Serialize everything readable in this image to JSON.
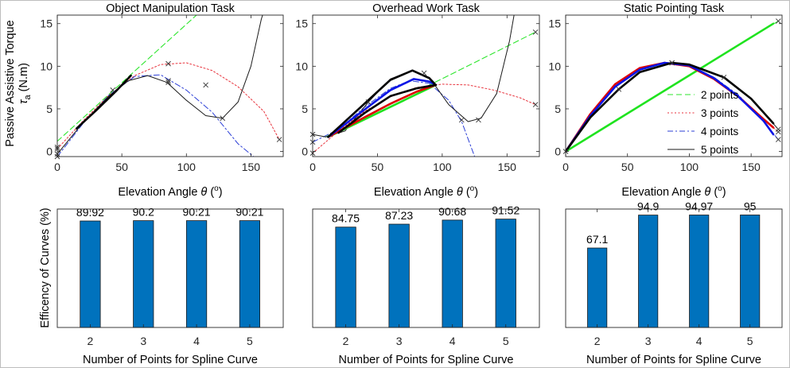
{
  "chart_data": [
    {
      "type": "line",
      "title": "Object Manipulation Task",
      "xlabel": "Elevation Angle θ (o)",
      "ylabel": "Passive Assistive Torque τa (N.m)",
      "xlim": [
        0,
        175
      ],
      "ylim": [
        -0.6,
        16
      ],
      "xticks": [
        "0",
        "50",
        "100",
        "150"
      ],
      "yticks": [
        "0",
        "5",
        "10",
        "15"
      ],
      "grid": false,
      "series": [
        {
          "name": "data",
          "points": [
            [
              15,
              2.7
            ],
            [
              30,
              4.8
            ],
            [
              45,
              7.0
            ],
            [
              57,
              8.9
            ]
          ]
        },
        {
          "name": "2 points",
          "points": [
            [
              0,
              1.2
            ],
            [
              110,
              16.3
            ]
          ],
          "markers": [
            [
              0,
              0.5
            ]
          ]
        },
        {
          "name": "3 points",
          "points": [
            [
              0,
              0.3
            ],
            [
              20,
              3.6
            ],
            [
              40,
              6.6
            ],
            [
              60,
              8.9
            ],
            [
              80,
              10.2
            ],
            [
              100,
              10.4
            ],
            [
              120,
              9.5
            ],
            [
              140,
              7.6
            ],
            [
              160,
              4.7
            ],
            [
              172,
              1.4
            ]
          ],
          "markers": [
            [
              0,
              0.3
            ],
            [
              86,
              10.3
            ],
            [
              172,
              1.4
            ]
          ]
        },
        {
          "name": "4 points",
          "points": [
            [
              0,
              -0.6
            ],
            [
              20,
              3.3
            ],
            [
              40,
              6.6
            ],
            [
              60,
              8.8
            ],
            [
              80,
              9.0
            ],
            [
              100,
              7.2
            ],
            [
              120,
              4.6
            ],
            [
              140,
              0.9
            ],
            [
              152,
              -0.6
            ]
          ],
          "markers": [
            [
              0,
              -0.6
            ],
            [
              86,
              8.3
            ],
            [
              115,
              7.8
            ]
          ]
        },
        {
          "name": "5 points",
          "points": [
            [
              0,
              -0.3
            ],
            [
              20,
              3.4
            ],
            [
              40,
              6.5
            ],
            [
              55,
              8.3
            ],
            [
              70,
              8.9
            ],
            [
              85,
              8.1
            ],
            [
              100,
              6.0
            ],
            [
              115,
              4.2
            ],
            [
              128,
              3.9
            ],
            [
              140,
              5.8
            ],
            [
              150,
              10.0
            ],
            [
              158,
              15.5
            ],
            [
              160,
              16.5
            ]
          ],
          "markers": [
            [
              0,
              -0.3
            ],
            [
              43,
              7.2
            ],
            [
              86,
              8.1
            ],
            [
              128,
              3.9
            ]
          ]
        }
      ]
    },
    {
      "type": "line",
      "title": "Overhead Work Task",
      "xlabel": "Elevation Angle θ (o)",
      "xlim": [
        0,
        175
      ],
      "ylim": [
        -0.6,
        16
      ],
      "xticks": [
        "0",
        "50",
        "100",
        "150"
      ],
      "yticks": [
        "0",
        "5",
        "10",
        "15"
      ],
      "grid": false,
      "series": [
        {
          "name": "data",
          "points": [
            [
              20,
              2.2
            ],
            [
              40,
              4.5
            ],
            [
              60,
              6.5
            ],
            [
              80,
              7.4
            ],
            [
              95,
              7.8
            ]
          ]
        },
        {
          "name": "2 points",
          "points": [
            [
              10,
              1.7
            ],
            [
              172,
              14.0
            ]
          ],
          "markers": [
            [
              172,
              14.0
            ]
          ]
        },
        {
          "name": "3 points",
          "points": [
            [
              0,
              -0.2
            ],
            [
              20,
              2.4
            ],
            [
              40,
              4.7
            ],
            [
              60,
              6.4
            ],
            [
              80,
              7.5
            ],
            [
              100,
              7.9
            ],
            [
              120,
              7.8
            ],
            [
              140,
              7.2
            ],
            [
              160,
              6.3
            ],
            [
              172,
              5.5
            ]
          ],
          "markers": [
            [
              0,
              -0.2
            ],
            [
              172,
              5.5
            ]
          ]
        },
        {
          "name": "4 points",
          "points": [
            [
              0,
              1.1
            ],
            [
              20,
              2.6
            ],
            [
              40,
              5.2
            ],
            [
              60,
              7.4
            ],
            [
              75,
              8.3
            ],
            [
              90,
              8.0
            ],
            [
              105,
              6.0
            ],
            [
              115,
              3.5
            ],
            [
              125,
              -0.6
            ]
          ],
          "markers": [
            [
              0,
              1.1
            ],
            [
              115,
              3.7
            ]
          ]
        },
        {
          "name": "5 points",
          "points": [
            [
              0,
              2.0
            ],
            [
              10,
              1.7
            ],
            [
              25,
              2.4
            ],
            [
              43,
              5.8
            ],
            [
              60,
              8.5
            ],
            [
              77,
              9.5
            ],
            [
              90,
              8.7
            ],
            [
              105,
              5.5
            ],
            [
              120,
              3.5
            ],
            [
              130,
              3.9
            ],
            [
              142,
              6.8
            ],
            [
              152,
              13.0
            ],
            [
              156,
              16.5
            ]
          ],
          "markers": [
            [
              0,
              2.0
            ],
            [
              43,
              5.8
            ],
            [
              86,
              9.2
            ],
            [
              128,
              3.7
            ]
          ]
        },
        {
          "name": "thick-red",
          "points": [
            [
              12,
              1.7
            ],
            [
              40,
              4.0
            ],
            [
              60,
              5.6
            ],
            [
              80,
              7.0
            ],
            [
              95,
              7.8
            ]
          ]
        },
        {
          "name": "thick-blue",
          "points": [
            [
              12,
              1.7
            ],
            [
              40,
              4.9
            ],
            [
              60,
              7.2
            ],
            [
              78,
              8.5
            ],
            [
              90,
              8.2
            ],
            [
              95,
              7.8
            ]
          ]
        },
        {
          "name": "thick-black",
          "points": [
            [
              12,
              1.7
            ],
            [
              40,
              5.6
            ],
            [
              60,
              8.4
            ],
            [
              77,
              9.5
            ],
            [
              90,
              8.6
            ],
            [
              95,
              7.8
            ]
          ]
        },
        {
          "name": "thick-green",
          "points": [
            [
              12,
              1.7
            ],
            [
              95,
              7.8
            ]
          ]
        }
      ]
    },
    {
      "type": "line",
      "title": "Static Pointing Task",
      "xlabel": "Elevation Angle θ (o)",
      "xlim": [
        0,
        175
      ],
      "ylim": [
        -0.6,
        16
      ],
      "xticks": [
        "0",
        "50",
        "100",
        "150"
      ],
      "yticks": [
        "0",
        "5",
        "10",
        "15"
      ],
      "grid": false,
      "legend_position": "center-right",
      "legend": [
        "2 points",
        "3 points",
        "4 points",
        "5 points"
      ],
      "series": [
        {
          "name": "2 points",
          "points": [
            [
              0,
              0
            ],
            [
              172,
              15.3
            ]
          ],
          "markers": [
            [
              0,
              0
            ],
            [
              172,
              15.3
            ]
          ]
        },
        {
          "name": "3 points",
          "points": [
            [
              0,
              0
            ],
            [
              20,
              4.4
            ],
            [
              40,
              7.9
            ],
            [
              60,
              9.8
            ],
            [
              80,
              10.4
            ],
            [
              100,
              10.0
            ],
            [
              120,
              8.6
            ],
            [
              140,
              6.4
            ],
            [
              160,
              3.7
            ],
            [
              172,
              2.3
            ]
          ],
          "markers": [
            [
              86,
              10.4
            ],
            [
              172,
              2.3
            ]
          ]
        },
        {
          "name": "4 points",
          "points": [
            [
              0,
              0
            ],
            [
              20,
              4.2
            ],
            [
              40,
              7.6
            ],
            [
              60,
              9.6
            ],
            [
              80,
              10.4
            ],
            [
              100,
              10.1
            ],
            [
              120,
              8.7
            ],
            [
              140,
              6.6
            ],
            [
              160,
              3.5
            ],
            [
              172,
              1.4
            ]
          ],
          "markers": [
            [
              172,
              1.4
            ]
          ]
        },
        {
          "name": "5 points",
          "points": [
            [
              0,
              0
            ],
            [
              20,
              4.0
            ],
            [
              43,
              7.3
            ],
            [
              60,
              9.3
            ],
            [
              86,
              10.4
            ],
            [
              100,
              10.2
            ],
            [
              128,
              8.7
            ],
            [
              150,
              6.2
            ],
            [
              172,
              2.6
            ]
          ],
          "markers": [
            [
              43,
              7.3
            ],
            [
              86,
              10.4
            ],
            [
              128,
              8.7
            ],
            [
              172,
              2.6
            ]
          ]
        },
        {
          "name": "thick-red",
          "points": [
            [
              0,
              0
            ],
            [
              20,
              4.4
            ],
            [
              40,
              7.9
            ],
            [
              60,
              9.8
            ],
            [
              80,
              10.4
            ],
            [
              100,
              10.0
            ],
            [
              120,
              8.5
            ],
            [
              140,
              6.4
            ],
            [
              160,
              3.8
            ],
            [
              168,
              2.8
            ]
          ]
        },
        {
          "name": "thick-blue",
          "points": [
            [
              0,
              0
            ],
            [
              20,
              4.2
            ],
            [
              40,
              7.6
            ],
            [
              60,
              9.6
            ],
            [
              80,
              10.4
            ],
            [
              100,
              10.1
            ],
            [
              120,
              8.6
            ],
            [
              140,
              6.4
            ],
            [
              160,
              3.6
            ],
            [
              168,
              2.0
            ]
          ]
        },
        {
          "name": "thick-black",
          "points": [
            [
              0,
              0
            ],
            [
              20,
              4.0
            ],
            [
              43,
              7.3
            ],
            [
              60,
              9.3
            ],
            [
              86,
              10.4
            ],
            [
              100,
              10.2
            ],
            [
              128,
              8.7
            ],
            [
              150,
              6.2
            ],
            [
              168,
              3.3
            ]
          ]
        },
        {
          "name": "thick-green",
          "points": [
            [
              0,
              0
            ],
            [
              168,
              15.0
            ]
          ]
        }
      ]
    },
    {
      "type": "bar",
      "ylabel": "Efficency of Curves (%)",
      "xlabel": "Number of Points for Spline Curve",
      "categories": [
        "2",
        "3",
        "4",
        "5"
      ],
      "values": [
        89.92,
        90.2,
        90.21,
        90.21
      ],
      "value_labels": [
        "89.92",
        "90.2",
        "90.21",
        "90.21"
      ],
      "ylim": [
        0,
        100
      ],
      "color": "#0072bd"
    },
    {
      "type": "bar",
      "xlabel": "Number of Points for Spline Curve",
      "categories": [
        "2",
        "3",
        "4",
        "5"
      ],
      "values": [
        84.75,
        87.23,
        90.68,
        91.52
      ],
      "value_labels": [
        "84.75",
        "87.23",
        "90.68",
        "91.52"
      ],
      "ylim": [
        0,
        100
      ],
      "color": "#0072bd"
    },
    {
      "type": "bar",
      "xlabel": "Number of Points for Spline Curve",
      "categories": [
        "2",
        "3",
        "4",
        "5"
      ],
      "values": [
        67.1,
        94.9,
        94.97,
        95
      ],
      "value_labels": [
        "67.1",
        "94.9",
        "94.97",
        "95"
      ],
      "ylim": [
        0,
        100
      ],
      "color": "#0072bd"
    }
  ],
  "colors": {
    "data": "#000000",
    "2 points": "#2ee62e",
    "3 points": "#e8323c",
    "4 points": "#2c3fd6",
    "5 points": "#1a1a1a",
    "thick-red": "#e00000",
    "thick-blue": "#0a14e6",
    "thick-black": "#000000",
    "thick-green": "#1fe31f",
    "bar": "#0072bd"
  }
}
